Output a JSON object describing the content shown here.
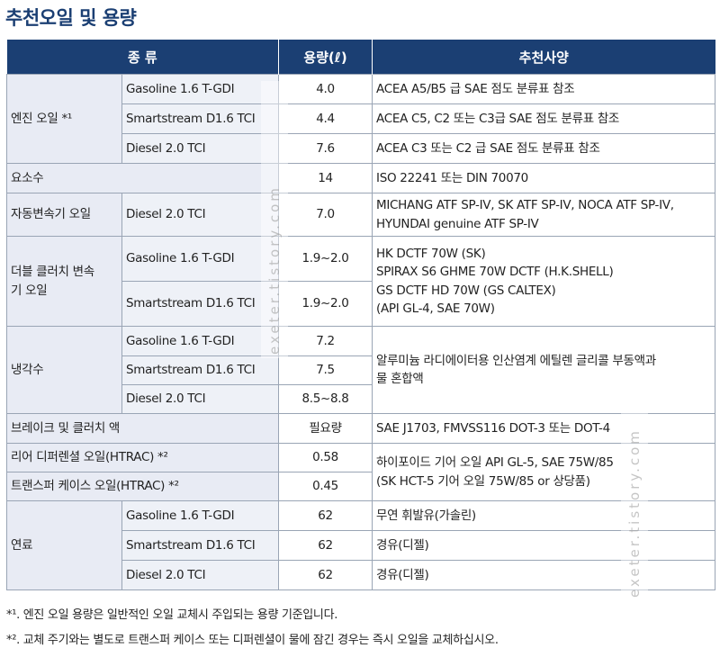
{
  "title": "추천오일 및 용량",
  "headers": [
    "종 류",
    "용량(ℓ)",
    "추천사양"
  ],
  "rows": {
    "engine": {
      "category": "엔진 오일 *¹",
      "items": [
        {
          "variant": "Gasoline 1.6 T-GDI",
          "capacity": "4.0",
          "spec": "ACEA A5/B5 급 SAE 점도 분류표 참조"
        },
        {
          "variant": "Smartstream D1.6 TCI",
          "capacity": "4.4",
          "spec": "ACEA C5, C2 또는 C3급 SAE 점도 분류표 참조"
        },
        {
          "variant": "Diesel 2.0 TCI",
          "capacity": "7.6",
          "spec": "ACEA C3 또는 C2 급 SAE 점도 분류표 참조"
        }
      ]
    },
    "urea": {
      "category": "요소수",
      "capacity": "14",
      "spec": "ISO 22241 또는 DIN 70070"
    },
    "auto_trans": {
      "category": "자동변속기 오일",
      "variant": "Diesel 2.0 TCI",
      "capacity": "7.0",
      "spec_line1": "MICHANG ATF SP-IV, SK ATF SP-IV, NOCA ATF SP-IV,",
      "spec_line2": "HYUNDAI genuine ATF SP-IV"
    },
    "dct": {
      "category_line1": "더블 클러치 변속",
      "category_line2": "기 오일",
      "items": [
        {
          "variant": "Gasoline 1.6 T-GDI",
          "capacity": "1.9~2.0"
        },
        {
          "variant": "Smartstream D1.6 TCI",
          "capacity": "1.9~2.0"
        }
      ],
      "spec_lines": [
        "HK DCTF 70W (SK)",
        "SPIRAX S6 GHME 70W DCTF (H.K.SHELL)",
        "GS DCTF HD 70W (GS CALTEX)",
        "(API GL-4, SAE 70W)"
      ]
    },
    "coolant": {
      "category": "냉각수",
      "items": [
        {
          "variant": "Gasoline 1.6 T-GDI",
          "capacity": "7.2"
        },
        {
          "variant": "Smartstream D1.6 TCI",
          "capacity": "7.5"
        },
        {
          "variant": "Diesel 2.0 TCI",
          "capacity": "8.5~8.8"
        }
      ],
      "spec_line1": "알루미늄 라디에이터용 인산염계 에틸렌 글리콜 부동액과",
      "spec_line2": "물 혼합액"
    },
    "brake": {
      "category": "브레이크 및 클러치 액",
      "capacity": "필요량",
      "spec": "SAE J1703, FMVSS116 DOT-3 또는 DOT-4"
    },
    "rear_diff": {
      "category": "리어 디퍼렌셜 오일(HTRAC) *²",
      "capacity": "0.58"
    },
    "transfer": {
      "category": "트랜스퍼 케이스 오일(HTRAC) *²",
      "capacity": "0.45"
    },
    "htrac_spec_line1": "하이포이드 기어 오일 API GL-5, SAE 75W/85",
    "htrac_spec_line2": "(SK HCT-5 기어 오일 75W/85 or 상당품)",
    "fuel": {
      "category": "연료",
      "items": [
        {
          "variant": "Gasoline 1.6 T-GDI",
          "capacity": "62",
          "spec": "무연 휘발유(가솔린)"
        },
        {
          "variant": "Smartstream D1.6 TCI",
          "capacity": "62",
          "spec": "경유(디젤)"
        },
        {
          "variant": "Diesel 2.0 TCI",
          "capacity": "62",
          "spec": "경유(디젤)"
        }
      ]
    }
  },
  "footnotes": [
    "*¹. 엔진 오일 용량은 일반적인 오일 교체시 주입되는 용량 기준입니다.",
    "*². 교체 주기와는 별도로 트랜스퍼 케이스 또는 디퍼렌셜이 물에 잠긴 경우는 즉시 오일을 교체하십시오."
  ],
  "watermark": "exeter.tistory.com"
}
